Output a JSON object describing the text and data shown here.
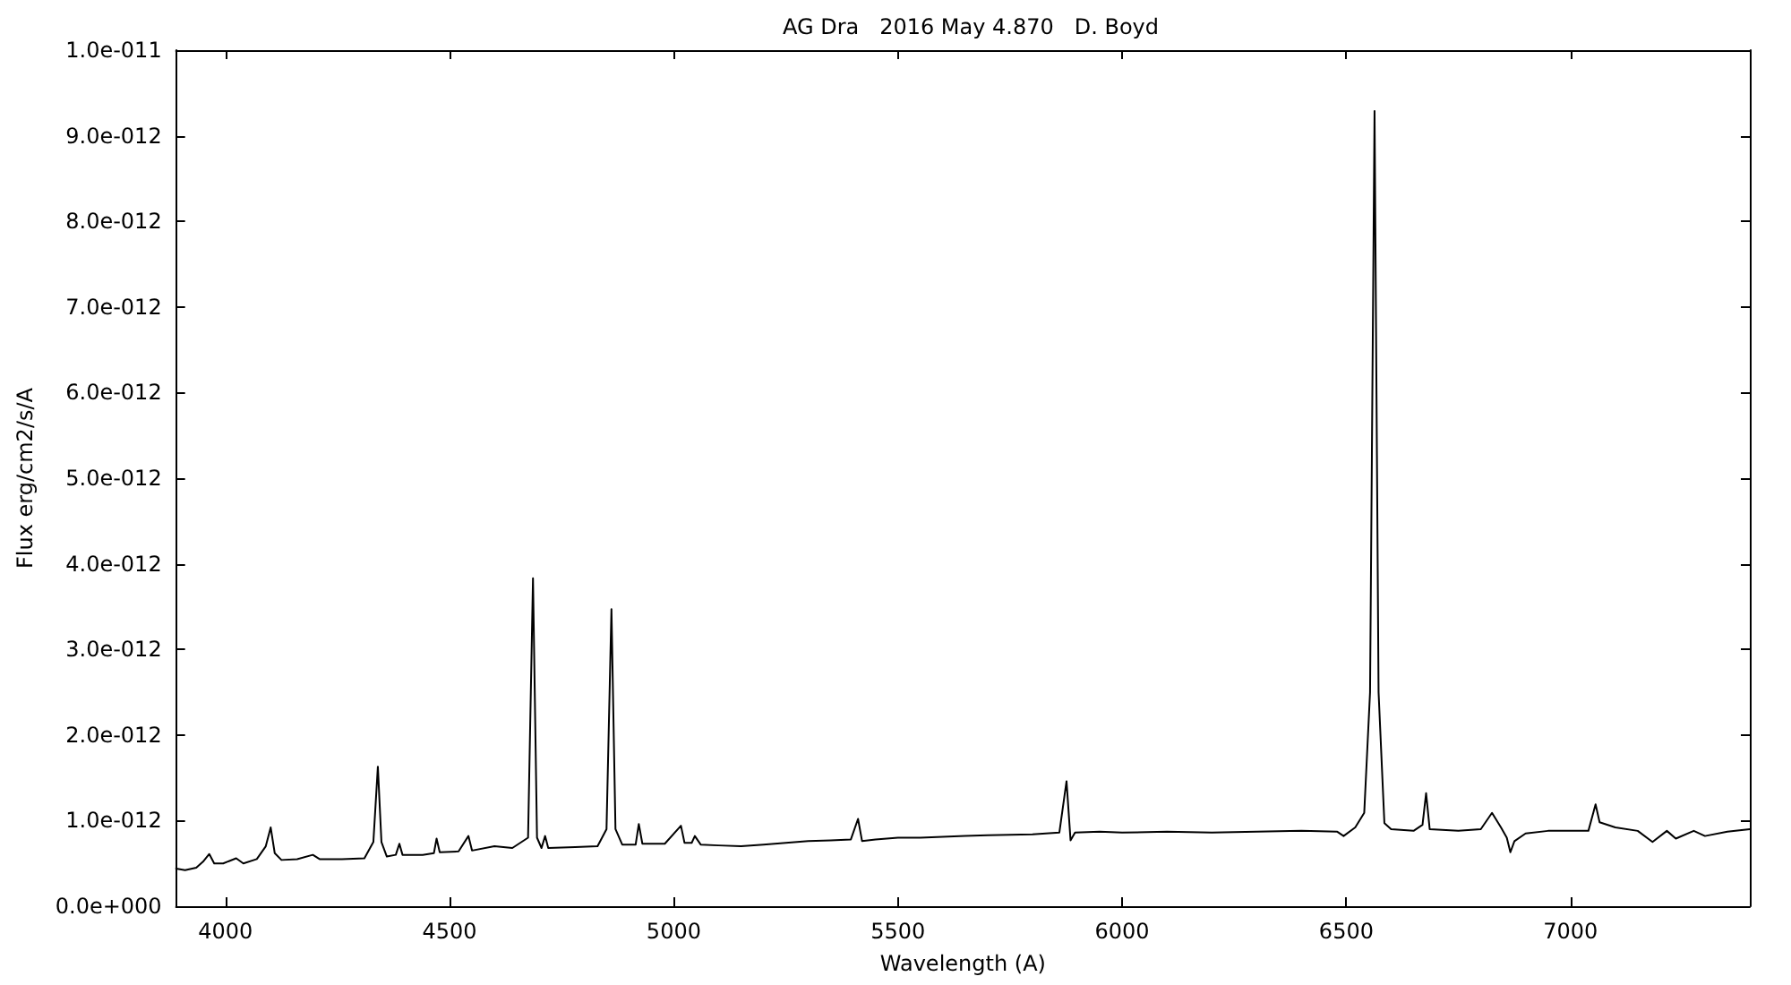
{
  "chart_data": {
    "type": "line",
    "title": "AG Dra   2016 May 4.870   D. Boyd",
    "xlabel": "Wavelength (A)",
    "ylabel": "Flux erg/cm2/s/A",
    "xlim": [
      3890,
      7400
    ],
    "xticks": [
      4000,
      4500,
      5000,
      5500,
      6000,
      6500,
      7000
    ],
    "ylim": [
      0,
      1e-11
    ],
    "yticks": [
      {
        "value": 0,
        "label": "0.0e+000"
      },
      {
        "value": 1e-12,
        "label": "1.0e-012"
      },
      {
        "value": 2e-12,
        "label": "2.0e-012"
      },
      {
        "value": 3e-12,
        "label": "3.0e-012"
      },
      {
        "value": 4e-12,
        "label": "4.0e-012"
      },
      {
        "value": 5e-12,
        "label": "5.0e-012"
      },
      {
        "value": 6e-12,
        "label": "6.0e-012"
      },
      {
        "value": 7e-12,
        "label": "7.0e-012"
      },
      {
        "value": 8e-12,
        "label": "8.0e-012"
      },
      {
        "value": 9e-12,
        "label": "9.0e-012"
      },
      {
        "value": 1e-11,
        "label": "1.0e-011"
      }
    ],
    "marker": "none",
    "line_style": "solid",
    "series": [
      {
        "color": "#000000",
        "x": [
          3890,
          3910,
          3935,
          3950,
          3964,
          3975,
          3995,
          4024,
          4040,
          4070,
          4090,
          4101,
          4110,
          4125,
          4160,
          4195,
          4210,
          4260,
          4310,
          4330,
          4340,
          4348,
          4360,
          4380,
          4388,
          4395,
          4440,
          4465,
          4471,
          4478,
          4520,
          4542,
          4550,
          4600,
          4640,
          4675,
          4686,
          4695,
          4705,
          4713,
          4720,
          4780,
          4830,
          4850,
          4861,
          4870,
          4885,
          4915,
          4922,
          4930,
          4980,
          5016,
          5024,
          5040,
          5047,
          5060,
          5100,
          5150,
          5200,
          5250,
          5300,
          5350,
          5395,
          5411,
          5420,
          5450,
          5500,
          5550,
          5600,
          5650,
          5700,
          5800,
          5860,
          5876,
          5885,
          5895,
          5950,
          6000,
          6100,
          6200,
          6300,
          6400,
          6480,
          6494,
          6520,
          6540,
          6553,
          6563,
          6572,
          6585,
          6600,
          6650,
          6670,
          6678,
          6686,
          6750,
          6800,
          6825,
          6845,
          6858,
          6866,
          6875,
          6900,
          6950,
          7040,
          7056,
          7065,
          7100,
          7150,
          7183,
          7215,
          7235,
          7275,
          7300,
          7350,
          7400
        ],
        "values": [
          4.4e-13,
          4.2e-13,
          4.5e-13,
          5.2e-13,
          6.1e-13,
          5e-13,
          5e-13,
          5.6e-13,
          5e-13,
          5.5e-13,
          7e-13,
          9.2e-13,
          6.2e-13,
          5.4e-13,
          5.5e-13,
          6e-13,
          5.5e-13,
          5.5e-13,
          5.6e-13,
          7.5e-13,
          1.63e-12,
          7.5e-13,
          5.8e-13,
          6e-13,
          7.3e-13,
          6e-13,
          6e-13,
          6.2e-13,
          7.9e-13,
          6.3e-13,
          6.4e-13,
          8.2e-13,
          6.5e-13,
          7e-13,
          6.8e-13,
          8e-13,
          3.83e-12,
          8e-13,
          6.8e-13,
          8.2e-13,
          6.8e-13,
          6.9e-13,
          7e-13,
          9e-13,
          3.47e-12,
          9e-13,
          7.2e-13,
          7.2e-13,
          9.6e-13,
          7.3e-13,
          7.3e-13,
          9.4e-13,
          7.4e-13,
          7.4e-13,
          8.2e-13,
          7.2e-13,
          7.1e-13,
          7e-13,
          7.2e-13,
          7.4e-13,
          7.6e-13,
          7.7e-13,
          7.8e-13,
          1.02e-12,
          7.6e-13,
          7.8e-13,
          8e-13,
          8e-13,
          8.1e-13,
          8.2e-13,
          8.3e-13,
          8.4e-13,
          8.6e-13,
          1.46e-12,
          7.7e-13,
          8.6e-13,
          8.7e-13,
          8.6e-13,
          8.7e-13,
          8.6e-13,
          8.7e-13,
          8.8e-13,
          8.7e-13,
          8.2e-13,
          9.2e-13,
          1.09e-12,
          2.5e-12,
          9.29e-12,
          2.5e-12,
          9.7e-13,
          9e-13,
          8.8e-13,
          9.5e-13,
          1.32e-12,
          9e-13,
          8.8e-13,
          9e-13,
          1.09e-12,
          9.2e-13,
          8e-13,
          6.3e-13,
          7.6e-13,
          8.5e-13,
          8.8e-13,
          8.8e-13,
          1.19e-12,
          9.8e-13,
          9.2e-13,
          8.8e-13,
          7.5e-13,
          8.8e-13,
          7.9e-13,
          8.8e-13,
          8.2e-13,
          8.7e-13,
          9e-13
        ]
      }
    ]
  }
}
